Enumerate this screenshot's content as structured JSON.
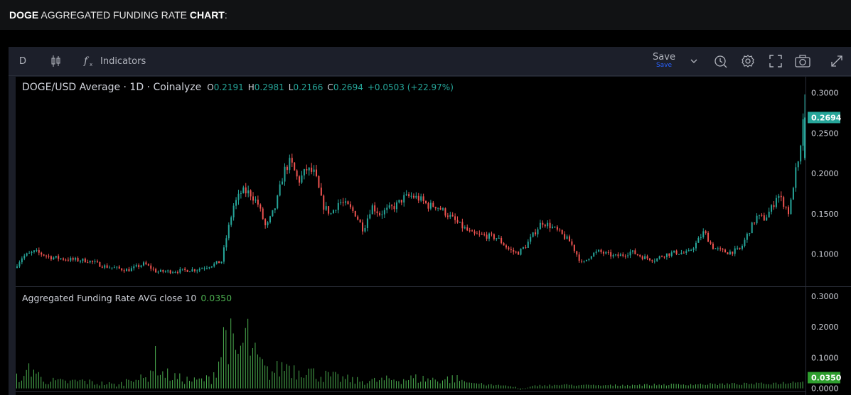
{
  "header": {
    "title_bold": "DOGE",
    "title_mid": " AGGREGATED FUNDING RATE ",
    "title_bold2": "CHART",
    "title_tail": ":"
  },
  "toolbar": {
    "interval": "D",
    "indicators_label": "Indicators",
    "save_label": "Save",
    "save_sub": "Save",
    "icons": [
      "candles-icon",
      "fx-icon",
      "chevron-down-icon",
      "alert-icon",
      "gear-icon",
      "fullscreen-icon",
      "camera-icon",
      "swap-icon"
    ]
  },
  "legend": {
    "title": "DOGE/USD Average · 1D · Coinalyze",
    "o_label": "O",
    "o": "0.2191",
    "h_label": "H",
    "h": "0.2981",
    "l_label": "L",
    "l": "0.2166",
    "c_label": "C",
    "c": "0.2694",
    "change": "+0.0503 (+22.97%)"
  },
  "indicator_legend": {
    "title": "Aggregated Funding Rate AVG close 10",
    "value": "0.0350"
  },
  "colors": {
    "up": "#26a69a",
    "down": "#ef5350",
    "funding": "#4caf50",
    "price_badge": "#26a69a",
    "funding_badge": "#2e9e2e"
  },
  "chart_data": [
    {
      "type": "candlestick",
      "series": [
        {
          "name": "DOGE/USD Average"
        }
      ],
      "yticks": [
        "0.3000",
        "0.2500",
        "0.2000",
        "0.1500",
        "0.1000"
      ],
      "ylim": [
        0.06,
        0.32
      ],
      "last_value": "0.2694",
      "close_path": [
        [
          0,
          0.083
        ],
        [
          10,
          0.097
        ],
        [
          25,
          0.103
        ],
        [
          45,
          0.096
        ],
        [
          70,
          0.093
        ],
        [
          90,
          0.092
        ],
        [
          110,
          0.085
        ],
        [
          140,
          0.08
        ],
        [
          160,
          0.088
        ],
        [
          175,
          0.078
        ],
        [
          200,
          0.079
        ],
        [
          225,
          0.081
        ],
        [
          245,
          0.087
        ],
        [
          255,
          0.091
        ],
        [
          262,
          0.125
        ],
        [
          270,
          0.16
        ],
        [
          280,
          0.178
        ],
        [
          290,
          0.176
        ],
        [
          300,
          0.162
        ],
        [
          310,
          0.132
        ],
        [
          322,
          0.16
        ],
        [
          332,
          0.203
        ],
        [
          340,
          0.215
        ],
        [
          350,
          0.19
        ],
        [
          360,
          0.205
        ],
        [
          370,
          0.2
        ],
        [
          380,
          0.16
        ],
        [
          390,
          0.15
        ],
        [
          400,
          0.165
        ],
        [
          410,
          0.16
        ],
        [
          420,
          0.15
        ],
        [
          430,
          0.13
        ],
        [
          440,
          0.16
        ],
        [
          450,
          0.15
        ],
        [
          460,
          0.155
        ],
        [
          470,
          0.16
        ],
        [
          480,
          0.17
        ],
        [
          490,
          0.172
        ],
        [
          500,
          0.168
        ],
        [
          510,
          0.16
        ],
        [
          520,
          0.16
        ],
        [
          535,
          0.148
        ],
        [
          550,
          0.135
        ],
        [
          565,
          0.124
        ],
        [
          580,
          0.123
        ],
        [
          595,
          0.12
        ],
        [
          610,
          0.105
        ],
        [
          620,
          0.101
        ],
        [
          630,
          0.11
        ],
        [
          640,
          0.125
        ],
        [
          650,
          0.14
        ],
        [
          660,
          0.135
        ],
        [
          670,
          0.128
        ],
        [
          685,
          0.115
        ],
        [
          695,
          0.096
        ],
        [
          700,
          0.087
        ],
        [
          710,
          0.099
        ],
        [
          720,
          0.103
        ],
        [
          740,
          0.097
        ],
        [
          750,
          0.099
        ],
        [
          760,
          0.103
        ],
        [
          775,
          0.096
        ],
        [
          790,
          0.093
        ],
        [
          800,
          0.099
        ],
        [
          815,
          0.102
        ],
        [
          830,
          0.101
        ],
        [
          840,
          0.113
        ],
        [
          850,
          0.128
        ],
        [
          860,
          0.109
        ],
        [
          870,
          0.104
        ],
        [
          880,
          0.102
        ],
        [
          895,
          0.106
        ],
        [
          905,
          0.128
        ],
        [
          915,
          0.146
        ],
        [
          925,
          0.144
        ],
        [
          935,
          0.16
        ],
        [
          940,
          0.175
        ],
        [
          950,
          0.16
        ],
        [
          955,
          0.15
        ],
        [
          962,
          0.2
        ],
        [
          968,
          0.216
        ],
        [
          972,
          0.2694
        ]
      ],
      "last_candle": {
        "o": 0.2191,
        "h": 0.2981,
        "l": 0.2166,
        "c": 0.2694
      }
    },
    {
      "type": "bar",
      "series": [
        {
          "name": "Aggregated Funding Rate AVG close 10"
        }
      ],
      "yticks": [
        "0.3000",
        "0.2000",
        "0.1000",
        "0.0000"
      ],
      "ylim": [
        -0.01,
        0.33
      ],
      "last_value": "0.0350",
      "profile": [
        [
          0,
          0.04
        ],
        [
          5,
          0.06
        ],
        [
          10,
          0.03
        ],
        [
          15,
          0.09
        ],
        [
          20,
          0.08
        ],
        [
          30,
          0.04
        ],
        [
          40,
          0.03
        ],
        [
          60,
          0.025
        ],
        [
          80,
          0.03
        ],
        [
          100,
          0.02
        ],
        [
          110,
          0.02
        ],
        [
          125,
          0.012
        ],
        [
          135,
          0.03
        ],
        [
          145,
          0.06
        ],
        [
          150,
          0.035
        ],
        [
          160,
          0.04
        ],
        [
          170,
          0.12
        ],
        [
          180,
          0.06
        ],
        [
          190,
          0.05
        ],
        [
          200,
          0.04
        ],
        [
          220,
          0.03
        ],
        [
          240,
          0.04
        ],
        [
          250,
          0.12
        ],
        [
          255,
          0.2
        ],
        [
          258,
          0.24
        ],
        [
          262,
          0.21
        ],
        [
          270,
          0.12
        ],
        [
          278,
          0.17
        ],
        [
          284,
          0.22
        ],
        [
          290,
          0.14
        ],
        [
          300,
          0.1
        ],
        [
          310,
          0.06
        ],
        [
          325,
          0.08
        ],
        [
          335,
          0.1
        ],
        [
          345,
          0.07
        ],
        [
          355,
          0.09
        ],
        [
          365,
          0.06
        ],
        [
          380,
          0.05
        ],
        [
          400,
          0.04
        ],
        [
          420,
          0.03
        ],
        [
          440,
          0.03
        ],
        [
          460,
          0.035
        ],
        [
          490,
          0.04
        ],
        [
          520,
          0.035
        ],
        [
          540,
          0.04
        ],
        [
          560,
          0.02
        ],
        [
          580,
          0.012
        ],
        [
          600,
          0.01
        ],
        [
          615,
          0.005
        ],
        [
          620,
          -0.005
        ],
        [
          640,
          0.01
        ],
        [
          680,
          0.012
        ],
        [
          720,
          0.01
        ],
        [
          760,
          0.012
        ],
        [
          800,
          0.013
        ],
        [
          840,
          0.014
        ],
        [
          880,
          0.015
        ],
        [
          920,
          0.016
        ],
        [
          955,
          0.02
        ],
        [
          965,
          0.025
        ],
        [
          972,
          0.035
        ]
      ]
    }
  ]
}
